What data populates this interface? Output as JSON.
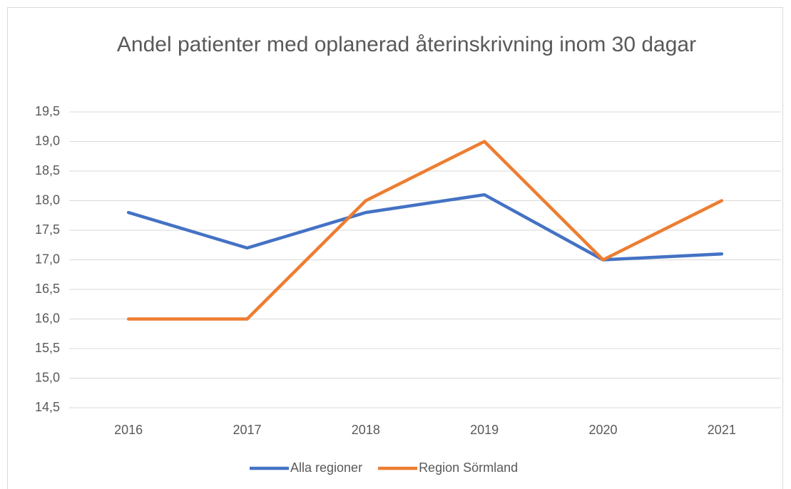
{
  "chart_data": {
    "type": "line",
    "title": "Andel patienter med oplanerad återinskrivning inom 30 dagar",
    "categories": [
      "2016",
      "2017",
      "2018",
      "2019",
      "2020",
      "2021"
    ],
    "series": [
      {
        "name": "Alla regioner",
        "color": "#4472c4",
        "values": [
          17.8,
          17.2,
          17.8,
          18.1,
          17.0,
          17.1
        ]
      },
      {
        "name": "Region Sörmland",
        "color": "#ed7d31",
        "values": [
          16.0,
          16.0,
          18.0,
          19.0,
          17.0,
          18.0
        ]
      }
    ],
    "ylim": [
      14.5,
      19.5
    ],
    "yticks": [
      {
        "value": 14.5,
        "label": "14,5"
      },
      {
        "value": 15,
        "label": "15,0"
      },
      {
        "value": 15.5,
        "label": "15,5"
      },
      {
        "value": 16,
        "label": "16,0"
      },
      {
        "value": 16.5,
        "label": "16,5"
      },
      {
        "value": 17,
        "label": "17,0"
      },
      {
        "value": 17.5,
        "label": "17,5"
      },
      {
        "value": 18,
        "label": "18,0"
      },
      {
        "value": 18.5,
        "label": "18,5"
      },
      {
        "value": 19,
        "label": "19,0"
      },
      {
        "value": 19.5,
        "label": "19,5"
      }
    ],
    "grid": true,
    "legend": "bottom"
  }
}
